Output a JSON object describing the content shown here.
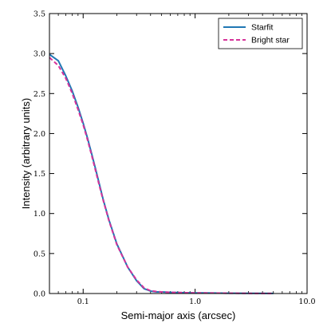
{
  "chart_data": {
    "type": "line",
    "xscale": "log",
    "xlabel": "Semi-major axis (arcsec)",
    "ylabel": "Intensity (arbitrary units)",
    "xlim": [
      0.05,
      10.0
    ],
    "ylim": [
      0.0,
      3.5
    ],
    "xticks": [
      {
        "value": 0.1,
        "label": "0.1"
      },
      {
        "value": 1.0,
        "label": "1.0"
      },
      {
        "value": 10.0,
        "label": "10.0"
      }
    ],
    "yticks": [
      {
        "value": 0.0,
        "label": "0.0"
      },
      {
        "value": 0.5,
        "label": "0.5"
      },
      {
        "value": 1.0,
        "label": "1.0"
      },
      {
        "value": 1.5,
        "label": "1.5"
      },
      {
        "value": 2.0,
        "label": "2.0"
      },
      {
        "value": 2.5,
        "label": "2.5"
      },
      {
        "value": 3.0,
        "label": "3.0"
      },
      {
        "value": 3.5,
        "label": "3.5"
      }
    ],
    "grid": false,
    "legend_position": "top-right",
    "series": [
      {
        "name": "Starfit",
        "color": "#1f77b4",
        "style": "solid",
        "x": [
          0.05,
          0.06,
          0.07,
          0.08,
          0.09,
          0.1,
          0.11,
          0.12,
          0.13,
          0.14,
          0.15,
          0.17,
          0.2,
          0.25,
          0.3,
          0.35,
          0.4,
          0.45,
          0.5,
          0.6,
          0.8,
          1.0,
          2.0,
          3.0,
          5.0
        ],
        "y": [
          2.99,
          2.91,
          2.72,
          2.53,
          2.33,
          2.13,
          1.93,
          1.73,
          1.54,
          1.36,
          1.19,
          0.92,
          0.62,
          0.33,
          0.16,
          0.06,
          0.03,
          0.02,
          0.02,
          0.015,
          0.01,
          0.008,
          0.004,
          0.002,
          0.001
        ]
      },
      {
        "name": "Bright star",
        "color": "#d6339a",
        "style": "dashed",
        "x": [
          0.05,
          0.06,
          0.07,
          0.08,
          0.09,
          0.1,
          0.11,
          0.12,
          0.13,
          0.14,
          0.15,
          0.17,
          0.2,
          0.25,
          0.3,
          0.35,
          0.4,
          0.45,
          0.5,
          0.6,
          0.8,
          1.0,
          2.0,
          3.0,
          5.0
        ],
        "y": [
          2.95,
          2.85,
          2.69,
          2.5,
          2.3,
          2.11,
          1.91,
          1.71,
          1.52,
          1.34,
          1.18,
          0.91,
          0.61,
          0.33,
          0.17,
          0.07,
          0.035,
          0.025,
          0.02,
          0.015,
          0.01,
          0.008,
          0.004,
          0.002,
          0.001
        ]
      }
    ]
  }
}
